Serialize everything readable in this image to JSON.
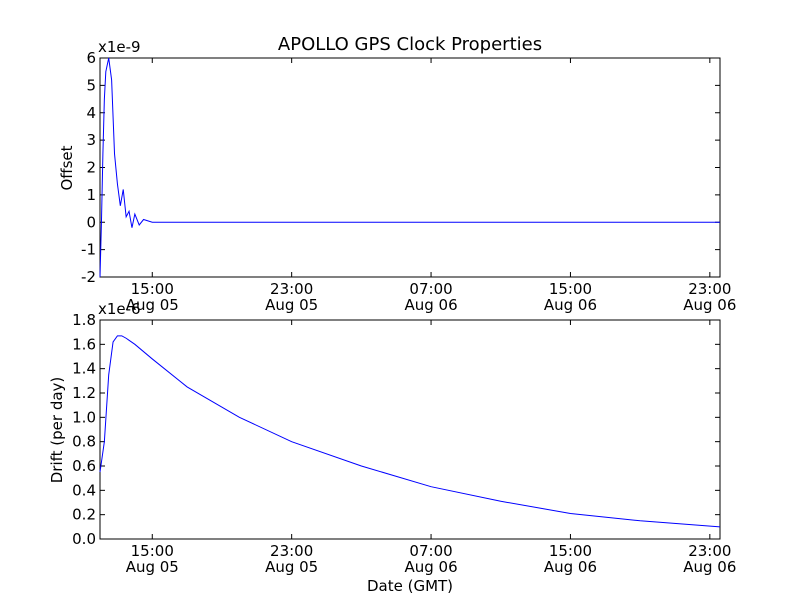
{
  "figure": {
    "title": "APOLLO GPS Clock Properties",
    "xlabel": "Date (GMT)",
    "x_ticks": [
      {
        "time": "Aug 05 15:00",
        "line1": "15:00",
        "line2": "Aug 05"
      },
      {
        "time": "Aug 05 23:00",
        "line1": "23:00",
        "line2": "Aug 05"
      },
      {
        "time": "Aug 06 07:00",
        "line1": "07:00",
        "line2": "Aug 06"
      },
      {
        "time": "Aug 06 15:00",
        "line1": "15:00",
        "line2": "Aug 06"
      },
      {
        "time": "Aug 06 23:00",
        "line1": "23:00",
        "line2": "Aug 06"
      }
    ],
    "line_color": "#0000ff"
  },
  "chart_data": [
    {
      "type": "line",
      "ylabel": "Offset",
      "y_multiplier": "x1e-9",
      "ylim": [
        -2,
        6
      ],
      "y_ticks": [
        "-2",
        "-1",
        "0",
        "1",
        "2",
        "3",
        "4",
        "5",
        "6"
      ],
      "xlim": [
        "Aug 05 12:00",
        "Aug 06 23:35"
      ],
      "series": [
        {
          "x": [
            "Aug 05 12:00",
            "Aug 05 12:05",
            "Aug 05 12:10",
            "Aug 05 12:15",
            "Aug 05 12:20",
            "Aug 05 12:30",
            "Aug 05 12:40",
            "Aug 05 12:50",
            "Aug 05 13:00",
            "Aug 05 13:10",
            "Aug 05 13:20",
            "Aug 05 13:30",
            "Aug 05 13:40",
            "Aug 05 13:50",
            "Aug 05 14:00",
            "Aug 05 14:15",
            "Aug 05 14:30",
            "Aug 05 15:00",
            "Aug 05 17:00",
            "Aug 05 20:00",
            "Aug 06 00:00",
            "Aug 06 04:00",
            "Aug 06 08:00",
            "Aug 06 12:00",
            "Aug 06 16:00",
            "Aug 06 20:00",
            "Aug 06 23:35"
          ],
          "y": [
            -2,
            0,
            2.5,
            4.5,
            5.5,
            6,
            5.2,
            2.5,
            1.4,
            0.6,
            1.2,
            0.2,
            0.4,
            -0.2,
            0.3,
            -0.1,
            0.1,
            0,
            0,
            0,
            0,
            0,
            0,
            0,
            0,
            0,
            0
          ]
        }
      ]
    },
    {
      "type": "line",
      "ylabel": "Drift (per day)",
      "y_multiplier": "x1e-6",
      "ylim": [
        0,
        1.8
      ],
      "y_ticks": [
        "0.0",
        "0.2",
        "0.4",
        "0.6",
        "0.8",
        "1.0",
        "1.2",
        "1.4",
        "1.6",
        "1.8"
      ],
      "xlim": [
        "Aug 05 12:00",
        "Aug 06 23:35"
      ],
      "series": [
        {
          "x": [
            "Aug 05 12:00",
            "Aug 05 12:15",
            "Aug 05 12:30",
            "Aug 05 12:45",
            "Aug 05 13:00",
            "Aug 05 13:15",
            "Aug 05 13:30",
            "Aug 05 14:00",
            "Aug 05 15:00",
            "Aug 05 17:00",
            "Aug 05 20:00",
            "Aug 05 23:00",
            "Aug 06 03:00",
            "Aug 06 07:00",
            "Aug 06 11:00",
            "Aug 06 15:00",
            "Aug 06 19:00",
            "Aug 06 23:35"
          ],
          "y": [
            0.55,
            0.8,
            1.35,
            1.62,
            1.67,
            1.67,
            1.65,
            1.6,
            1.48,
            1.25,
            1.0,
            0.8,
            0.6,
            0.43,
            0.31,
            0.21,
            0.15,
            0.1
          ]
        }
      ]
    }
  ]
}
